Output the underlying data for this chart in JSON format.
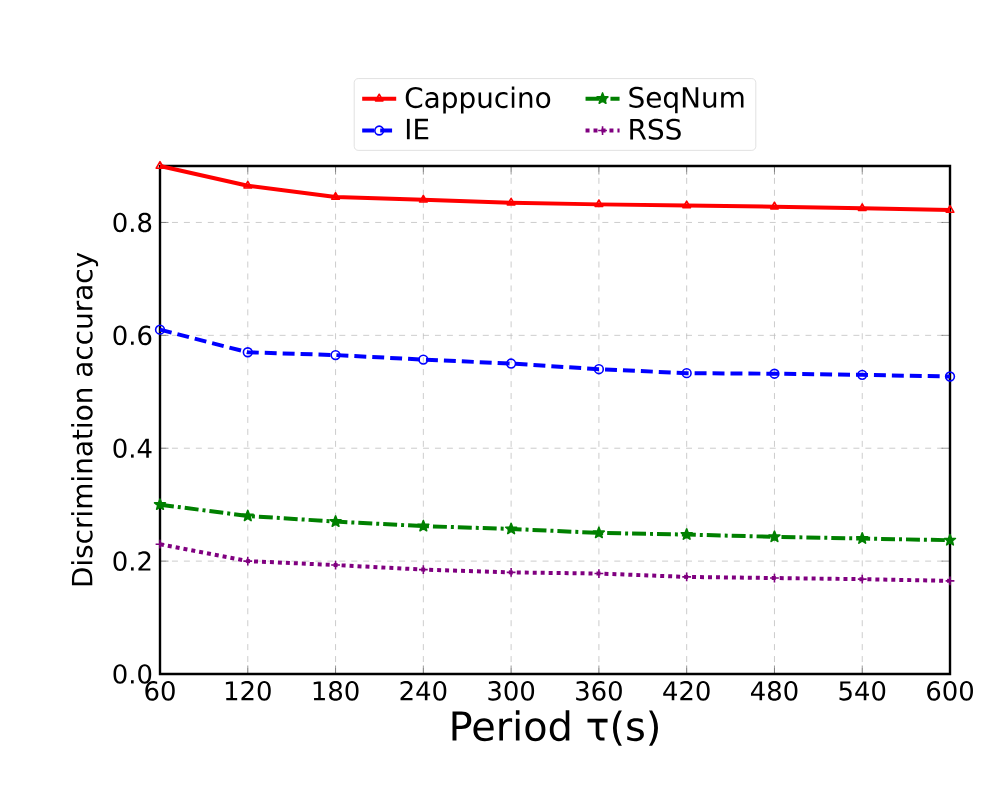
{
  "chart_data": {
    "type": "line",
    "xlabel": "Period τ(s)",
    "ylabel": "Discrimination accuracy",
    "x": [
      60,
      120,
      180,
      240,
      300,
      360,
      420,
      480,
      540,
      600
    ],
    "series": [
      {
        "name": "Cappucino",
        "color": "#ff0000",
        "marker": "triangle",
        "line_style": "solid",
        "values": [
          0.9,
          0.865,
          0.845,
          0.84,
          0.835,
          0.832,
          0.83,
          0.828,
          0.825,
          0.822
        ]
      },
      {
        "name": "IE",
        "color": "#0000ff",
        "marker": "circle",
        "line_style": "dashed",
        "values": [
          0.61,
          0.57,
          0.565,
          0.557,
          0.55,
          0.54,
          0.533,
          0.532,
          0.53,
          0.527
        ]
      },
      {
        "name": "SeqNum",
        "color": "#008000",
        "marker": "star",
        "line_style": "dashdot",
        "values": [
          0.3,
          0.28,
          0.27,
          0.262,
          0.257,
          0.25,
          0.247,
          0.243,
          0.24,
          0.237
        ]
      },
      {
        "name": "RSS",
        "color": "#800080",
        "marker": "cross",
        "line_style": "dotted",
        "values": [
          0.23,
          0.2,
          0.193,
          0.185,
          0.18,
          0.178,
          0.172,
          0.17,
          0.168,
          0.165
        ]
      }
    ],
    "xlim": [
      60,
      600
    ],
    "xticks": [
      60,
      120,
      180,
      240,
      300,
      360,
      420,
      480,
      540,
      600
    ],
    "ylim": [
      0,
      0.9
    ],
    "yticks": [
      {
        "value": 0,
        "label": "0.0"
      },
      0.2,
      0.4,
      0.6,
      0.8
    ],
    "grid": true,
    "legend": "top"
  }
}
